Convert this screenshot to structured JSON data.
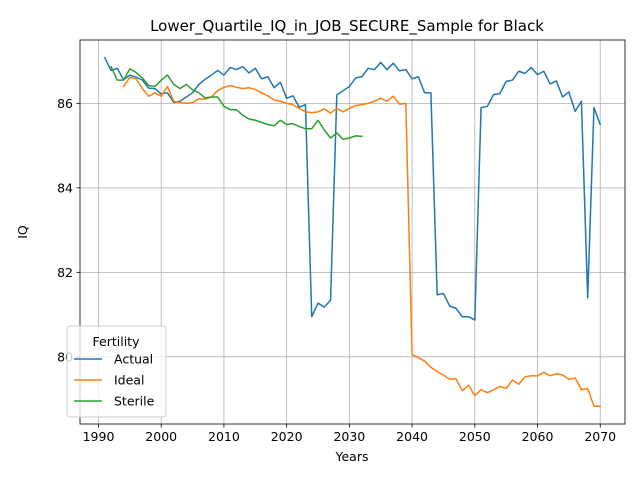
{
  "chart_data": {
    "type": "line",
    "title": "Lower_Quartile_IQ_in_JOB_SECURE_Sample for Black",
    "xlabel": "Years",
    "ylabel": "IQ",
    "xlim": [
      1987.05,
      2073.95
    ],
    "ylim": [
      78.41,
      87.5
    ],
    "xticks": [
      1990,
      2000,
      2010,
      2020,
      2030,
      2040,
      2050,
      2060,
      2070
    ],
    "yticks": [
      80,
      82,
      84,
      86
    ],
    "xtick_labels": [
      "1990",
      "2000",
      "2010",
      "2020",
      "2030",
      "2040",
      "2050",
      "2060",
      "2070"
    ],
    "ytick_labels": [
      "80",
      "82",
      "84",
      "86"
    ],
    "grid": true,
    "legend": {
      "title": "Fertility",
      "placement": "lower-left"
    },
    "series": [
      {
        "name": "Actual",
        "color": "#1f77b4",
        "x": [
          1991,
          1992,
          1993,
          1994,
          1995,
          1996,
          1997,
          1998,
          1999,
          2000,
          2001,
          2002,
          2003,
          2004,
          2005,
          2006,
          2007,
          2008,
          2009,
          2010,
          2011,
          2012,
          2013,
          2014,
          2015,
          2016,
          2017,
          2018,
          2019,
          2020,
          2021,
          2022,
          2023,
          2024,
          2025,
          2026,
          2027,
          2028,
          2029,
          2030,
          2031,
          2032,
          2033,
          2034,
          2035,
          2036,
          2037,
          2038,
          2039,
          2040,
          2041,
          2042,
          2043,
          2044,
          2045,
          2046,
          2047,
          2048,
          2049,
          2050,
          2051,
          2052,
          2053,
          2054,
          2055,
          2056,
          2057,
          2058,
          2059,
          2060,
          2061,
          2062,
          2063,
          2064,
          2065,
          2066,
          2067,
          2068,
          2069,
          2070
        ],
        "values": [
          87.08,
          86.78,
          86.83,
          86.56,
          86.67,
          86.62,
          86.55,
          86.36,
          86.35,
          86.22,
          86.25,
          86.02,
          86.05,
          86.15,
          86.25,
          86.45,
          86.57,
          86.67,
          86.78,
          86.67,
          86.85,
          86.8,
          86.87,
          86.72,
          86.83,
          86.58,
          86.63,
          86.37,
          86.5,
          86.12,
          86.18,
          85.91,
          85.97,
          80.95,
          81.27,
          81.18,
          81.34,
          86.2,
          86.3,
          86.4,
          86.6,
          86.63,
          86.83,
          86.8,
          86.97,
          86.8,
          86.95,
          86.77,
          86.8,
          86.58,
          86.63,
          86.25,
          86.25,
          81.47,
          81.5,
          81.2,
          81.15,
          80.95,
          80.95,
          80.87,
          85.9,
          85.93,
          86.21,
          86.23,
          86.52,
          86.55,
          86.76,
          86.71,
          86.85,
          86.68,
          86.76,
          86.46,
          86.53,
          86.15,
          86.27,
          85.81,
          86.05,
          81.4,
          85.9,
          85.5
        ]
      },
      {
        "name": "Ideal",
        "color": "#ff7f0e",
        "x": [
          1994,
          1995,
          1996,
          1997,
          1998,
          1999,
          2000,
          2001,
          2002,
          2003,
          2004,
          2005,
          2006,
          2007,
          2008,
          2009,
          2010,
          2011,
          2012,
          2013,
          2014,
          2015,
          2016,
          2017,
          2018,
          2019,
          2020,
          2021,
          2022,
          2023,
          2024,
          2025,
          2026,
          2027,
          2028,
          2029,
          2030,
          2031,
          2032,
          2033,
          2034,
          2035,
          2036,
          2037,
          2038,
          2039,
          2040,
          2041,
          2042,
          2043,
          2044,
          2045,
          2046,
          2047,
          2048,
          2049,
          2050,
          2051,
          2052,
          2053,
          2054,
          2055,
          2056,
          2057,
          2058,
          2059,
          2060,
          2061,
          2062,
          2063,
          2064,
          2065,
          2066,
          2067,
          2068,
          2069,
          2070
        ],
        "values": [
          86.4,
          86.62,
          86.58,
          86.35,
          86.17,
          86.25,
          86.17,
          86.4,
          86.05,
          86.02,
          86.0,
          86.02,
          86.11,
          86.1,
          86.15,
          86.3,
          86.38,
          86.42,
          86.38,
          86.35,
          86.37,
          86.33,
          86.25,
          86.18,
          86.08,
          86.05,
          86.0,
          85.97,
          85.88,
          85.8,
          85.78,
          85.8,
          85.87,
          85.77,
          85.88,
          85.8,
          85.88,
          85.95,
          85.97,
          86.0,
          86.05,
          86.12,
          86.05,
          86.17,
          85.98,
          86.0,
          80.05,
          79.98,
          79.9,
          79.75,
          79.65,
          79.57,
          79.47,
          79.48,
          79.2,
          79.33,
          79.08,
          79.22,
          79.15,
          79.22,
          79.3,
          79.25,
          79.45,
          79.35,
          79.53,
          79.55,
          79.55,
          79.63,
          79.55,
          79.6,
          79.57,
          79.47,
          79.5,
          79.22,
          79.25,
          78.83,
          78.83
        ]
      },
      {
        "name": "Sterile",
        "color": "#2ca02c",
        "x": [
          1992,
          1993,
          1994,
          1995,
          1996,
          1997,
          1998,
          1999,
          2000,
          2001,
          2002,
          2003,
          2004,
          2005,
          2006,
          2007,
          2008,
          2009,
          2010,
          2011,
          2012,
          2013,
          2014,
          2015,
          2016,
          2017,
          2018,
          2019,
          2020,
          2021,
          2022,
          2023,
          2024,
          2025,
          2026,
          2027,
          2028,
          2029,
          2030,
          2031,
          2032
        ],
        "values": [
          86.87,
          86.55,
          86.55,
          86.82,
          86.73,
          86.6,
          86.42,
          86.4,
          86.55,
          86.67,
          86.45,
          86.35,
          86.45,
          86.32,
          86.25,
          86.13,
          86.15,
          86.15,
          85.93,
          85.85,
          85.85,
          85.72,
          85.63,
          85.6,
          85.55,
          85.5,
          85.47,
          85.6,
          85.5,
          85.52,
          85.45,
          85.4,
          85.4,
          85.6,
          85.37,
          85.18,
          85.3,
          85.15,
          85.18,
          85.23,
          85.22
        ]
      }
    ]
  }
}
